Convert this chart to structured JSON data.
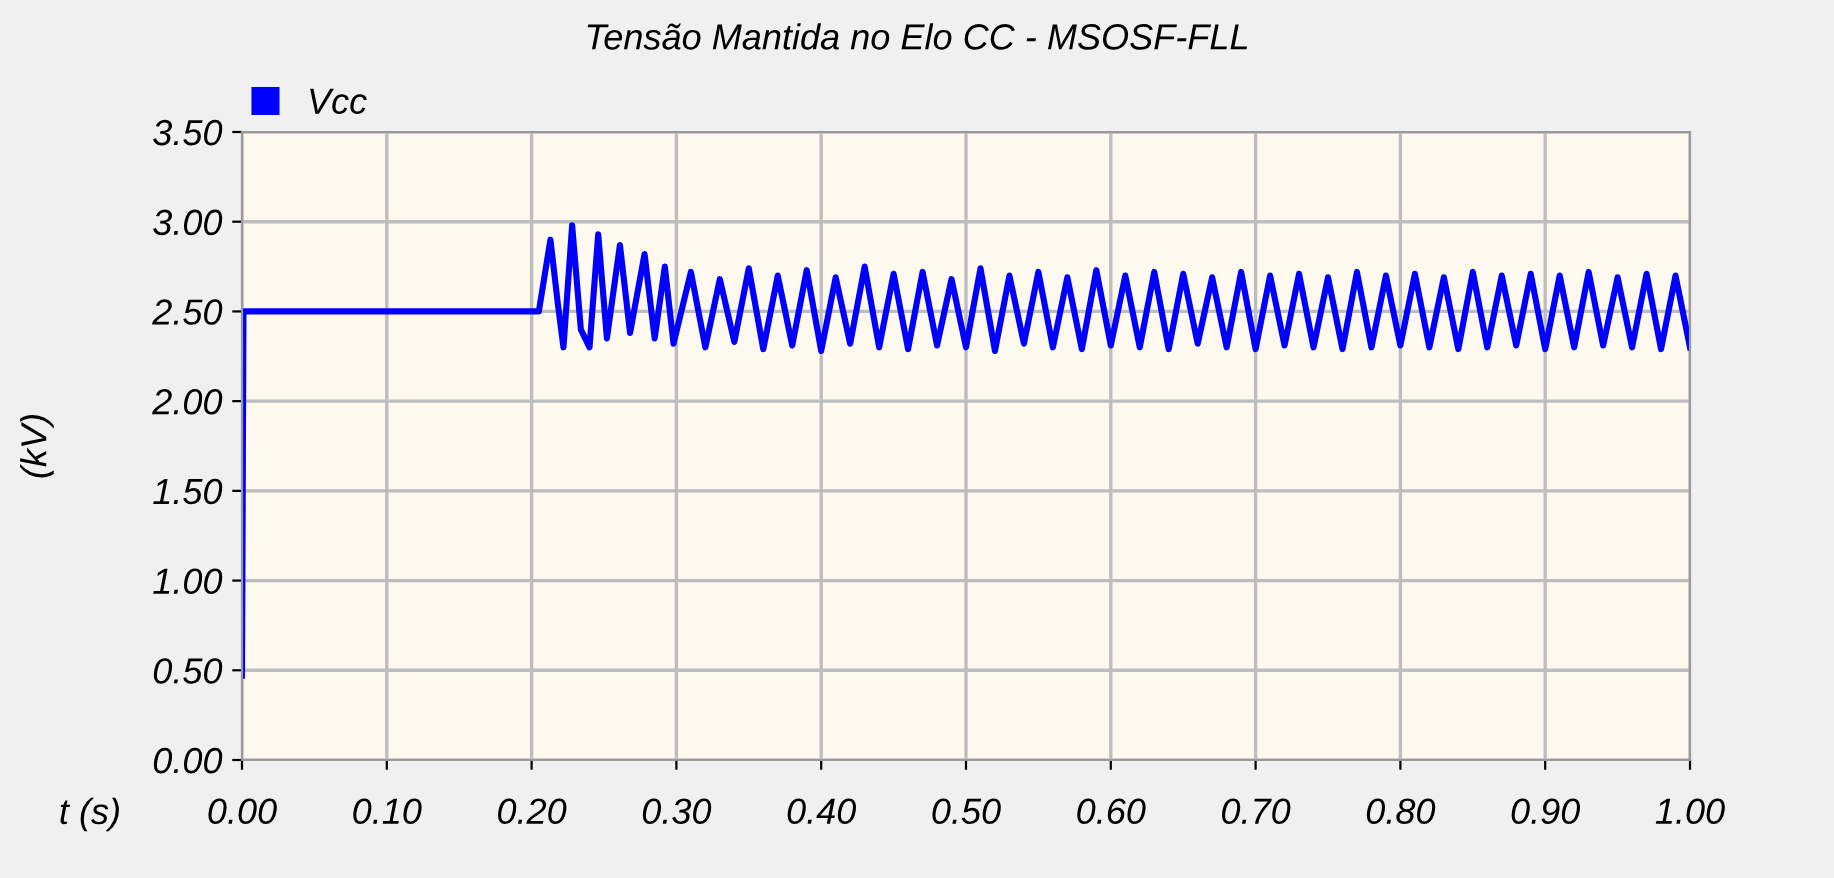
{
  "chart_data": {
    "type": "line",
    "title": "Tensão Mantida no Elo CC - MSOSF-FLL",
    "xlabel": "t (s)",
    "ylabel": "(kV)",
    "x": [
      0,
      0.001,
      0.205,
      0.21,
      0.213,
      0.218,
      0.222,
      0.228,
      0.234,
      0.24,
      0.246,
      0.252,
      0.261,
      0.268,
      0.278,
      0.285,
      0.292,
      0.298,
      0.31,
      0.32,
      0.33,
      0.34,
      0.35,
      0.36,
      0.37,
      0.38,
      0.39,
      0.4,
      0.41,
      0.42,
      0.43,
      0.44,
      0.45,
      0.46,
      0.47,
      0.48,
      0.49,
      0.5,
      0.51,
      0.52,
      0.53,
      0.54,
      0.55,
      0.56,
      0.57,
      0.58,
      0.59,
      0.6,
      0.61,
      0.62,
      0.63,
      0.64,
      0.65,
      0.66,
      0.67,
      0.68,
      0.69,
      0.7,
      0.71,
      0.72,
      0.73,
      0.74,
      0.75,
      0.76,
      0.77,
      0.78,
      0.79,
      0.8,
      0.81,
      0.82,
      0.83,
      0.84,
      0.85,
      0.86,
      0.87,
      0.88,
      0.89,
      0.9,
      0.91,
      0.92,
      0.93,
      0.94,
      0.95,
      0.96,
      0.97,
      0.98,
      0.99,
      1.0
    ],
    "series": [
      {
        "name": "Vcc",
        "color": "#0000ff",
        "values": [
          0.47,
          2.5,
          2.5,
          2.75,
          2.9,
          2.55,
          2.3,
          2.98,
          2.4,
          2.3,
          2.93,
          2.35,
          2.87,
          2.38,
          2.82,
          2.35,
          2.75,
          2.32,
          2.72,
          2.3,
          2.68,
          2.33,
          2.74,
          2.29,
          2.7,
          2.31,
          2.73,
          2.28,
          2.69,
          2.32,
          2.75,
          2.3,
          2.71,
          2.29,
          2.72,
          2.31,
          2.68,
          2.3,
          2.74,
          2.28,
          2.7,
          2.32,
          2.72,
          2.3,
          2.69,
          2.29,
          2.73,
          2.31,
          2.7,
          2.3,
          2.72,
          2.29,
          2.71,
          2.32,
          2.69,
          2.3,
          2.72,
          2.29,
          2.7,
          2.31,
          2.71,
          2.3,
          2.69,
          2.29,
          2.72,
          2.3,
          2.7,
          2.31,
          2.71,
          2.3,
          2.69,
          2.29,
          2.72,
          2.3,
          2.7,
          2.31,
          2.71,
          2.29,
          2.7,
          2.3,
          2.72,
          2.31,
          2.69,
          2.3,
          2.71,
          2.29,
          2.7,
          2.3
        ]
      }
    ],
    "xlim": [
      0,
      1
    ],
    "ylim": [
      0,
      3.5
    ],
    "xticks": [
      {
        "value": 0,
        "label": "0.00"
      },
      {
        "value": 0.1,
        "label": "0.10"
      },
      {
        "value": 0.2,
        "label": "0.20"
      },
      {
        "value": 0.3,
        "label": "0.30"
      },
      {
        "value": 0.4,
        "label": "0.40"
      },
      {
        "value": 0.5,
        "label": "0.50"
      },
      {
        "value": 0.6,
        "label": "0.60"
      },
      {
        "value": 0.7,
        "label": "0.70"
      },
      {
        "value": 0.8,
        "label": "0.80"
      },
      {
        "value": 0.9,
        "label": "0.90"
      },
      {
        "value": 1,
        "label": "1.00"
      }
    ],
    "yticks": [
      {
        "value": 0,
        "label": "0.00"
      },
      {
        "value": 0.5,
        "label": "0.50"
      },
      {
        "value": 1,
        "label": "1.00"
      },
      {
        "value": 1.5,
        "label": "1.50"
      },
      {
        "value": 2,
        "label": "2.00"
      },
      {
        "value": 2.5,
        "label": "2.50"
      },
      {
        "value": 3,
        "label": "3.00"
      },
      {
        "value": 3.5,
        "label": "3.50"
      }
    ],
    "grid": true,
    "legend": "top left",
    "marker": "none",
    "line_style": "solid"
  }
}
